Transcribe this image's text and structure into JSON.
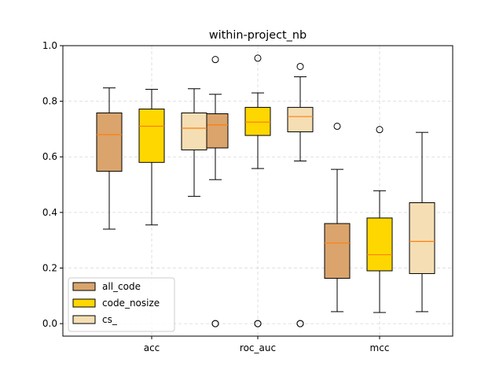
{
  "chart_data": {
    "type": "box",
    "title": "within-project_nb",
    "xlabel": "",
    "ylabel": "",
    "ylim": [
      -0.045,
      1.0
    ],
    "yticks": [
      0.0,
      0.2,
      0.4,
      0.6,
      0.8,
      1.0
    ],
    "grid": true,
    "legend_position": "lower-left",
    "categories": [
      "acc",
      "roc_auc",
      "mcc"
    ],
    "series": [
      {
        "name": "all_code",
        "color": "#DAA46C",
        "boxes": [
          {
            "whislo": 0.34,
            "q1": 0.548,
            "med": 0.68,
            "q3": 0.758,
            "whishi": 0.848,
            "fliers": []
          },
          {
            "whislo": 0.518,
            "q1": 0.632,
            "med": 0.715,
            "q3": 0.755,
            "whishi": 0.825,
            "fliers": [
              0.95,
              0.0,
              0.0
            ]
          },
          {
            "whislo": 0.043,
            "q1": 0.163,
            "med": 0.29,
            "q3": 0.36,
            "whishi": 0.555,
            "fliers": [
              0.71
            ]
          }
        ]
      },
      {
        "name": "code_nosize",
        "color": "#FFD700",
        "boxes": [
          {
            "whislo": 0.355,
            "q1": 0.58,
            "med": 0.71,
            "q3": 0.772,
            "whishi": 0.843,
            "fliers": []
          },
          {
            "whislo": 0.558,
            "q1": 0.677,
            "med": 0.725,
            "q3": 0.778,
            "whishi": 0.83,
            "fliers": [
              0.955,
              0.0,
              0.0
            ]
          },
          {
            "whislo": 0.04,
            "q1": 0.19,
            "med": 0.248,
            "q3": 0.38,
            "whishi": 0.478,
            "fliers": [
              0.698
            ]
          }
        ]
      },
      {
        "name": "cs_",
        "color": "#F5DEB3",
        "boxes": [
          {
            "whislo": 0.458,
            "q1": 0.625,
            "med": 0.703,
            "q3": 0.758,
            "whishi": 0.845,
            "fliers": []
          },
          {
            "whislo": 0.585,
            "q1": 0.69,
            "med": 0.745,
            "q3": 0.778,
            "whishi": 0.888,
            "fliers": [
              0.925,
              0.0,
              0.0
            ]
          },
          {
            "whislo": 0.043,
            "q1": 0.18,
            "med": 0.296,
            "q3": 0.435,
            "whishi": 0.688,
            "fliers": []
          }
        ]
      }
    ],
    "median_color": "#FF7F0E"
  }
}
